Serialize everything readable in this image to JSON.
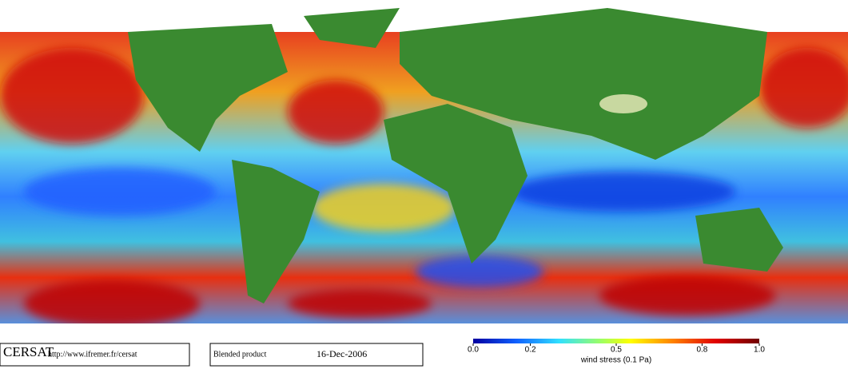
{
  "footer": {
    "logo": "CERSAT",
    "url": "http://www.ifremer.fr/cersat",
    "product": "Blended product",
    "date": "16-Dec-2006"
  },
  "colorbar": {
    "label": "wind stress (0.1 Pa)",
    "range": [
      0,
      1
    ],
    "ticks": [
      {
        "value": 0,
        "label": "0.0"
      },
      {
        "value": 0.2,
        "label": "0.2"
      },
      {
        "value": 0.5,
        "label": "0.5"
      },
      {
        "value": 0.8,
        "label": "0.8"
      },
      {
        "value": 1,
        "label": "1.0"
      }
    ]
  }
}
